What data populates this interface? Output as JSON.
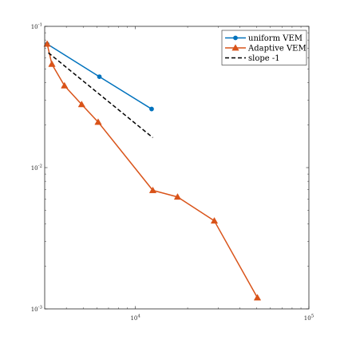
{
  "chart_data": {
    "type": "line",
    "xscale": "log",
    "yscale": "log",
    "xlim": [
      3000,
      100000
    ],
    "ylim": [
      0.001,
      0.1
    ],
    "x_ticks": [
      10000,
      100000
    ],
    "x_tick_labels": [
      "10^4",
      "10^5"
    ],
    "y_ticks": [
      0.001,
      0.01,
      0.1
    ],
    "y_tick_labels": [
      "10^-3",
      "10^-2",
      "10^-1"
    ],
    "grid": false,
    "legend_position": "top-right",
    "series": [
      {
        "name": "uniform VEM",
        "color": "#0072BD",
        "marker": "dot",
        "line_style": "solid",
        "x": [
          3100,
          6200,
          12400
        ],
        "y": [
          0.075,
          0.044,
          0.026
        ]
      },
      {
        "name": "Adaptive VEM",
        "color": "#D95319",
        "marker": "triangle",
        "line_style": "solid",
        "x": [
          3100,
          3300,
          3900,
          4900,
          6100,
          12600,
          17500,
          28500,
          50500
        ],
        "y": [
          0.075,
          0.054,
          0.038,
          0.028,
          0.021,
          0.0069,
          0.0062,
          0.0042,
          0.0012
        ]
      },
      {
        "name": "slope -1",
        "color": "#000000",
        "marker": "none",
        "line_style": "dashed",
        "x": [
          3150,
          12600
        ],
        "y": [
          0.065,
          0.0163
        ]
      }
    ]
  }
}
